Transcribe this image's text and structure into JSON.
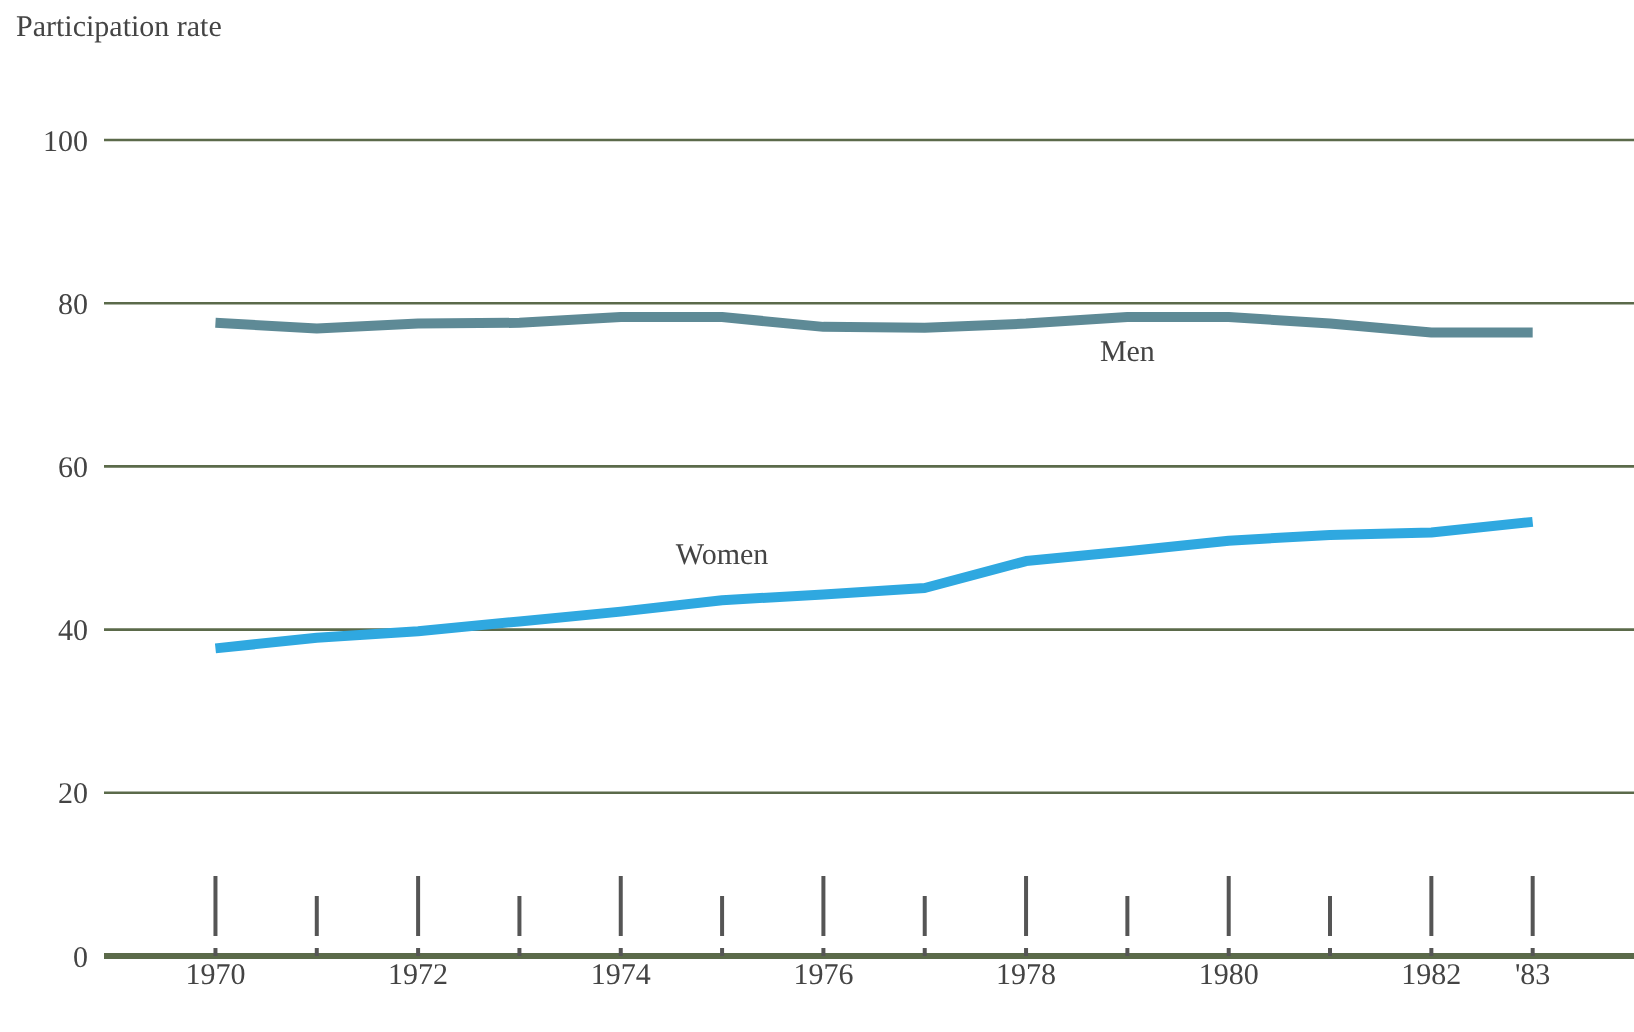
{
  "chart_data": {
    "type": "line",
    "ylabel": "Participation rate",
    "x": [
      1970,
      1971,
      1972,
      1973,
      1974,
      1975,
      1976,
      1977,
      1978,
      1979,
      1980,
      1981,
      1982,
      1983
    ],
    "series": [
      {
        "name": "Men",
        "color": "#5e8a96",
        "values": [
          77.6,
          76.9,
          77.5,
          77.6,
          78.3,
          78.3,
          77.1,
          77.0,
          77.5,
          78.3,
          78.3,
          77.5,
          76.4,
          76.4
        ]
      },
      {
        "name": "Women",
        "color": "#2fa8e0",
        "values": [
          37.7,
          39.0,
          39.8,
          41.0,
          42.2,
          43.6,
          44.3,
          45.1,
          48.4,
          49.6,
          50.9,
          51.6,
          51.9,
          53.2
        ]
      }
    ],
    "xlim": [
      1968.9,
      1984
    ],
    "xticks": [
      1970,
      {
        "value": 1971,
        "label": null
      },
      1972,
      {
        "value": 1973,
        "label": null
      },
      1974,
      {
        "value": 1975,
        "label": null
      },
      1976,
      {
        "value": 1977,
        "label": null
      },
      1978,
      {
        "value": 1979,
        "label": null
      },
      1980,
      {
        "value": 1981,
        "label": null
      },
      1982,
      {
        "value": 1983,
        "label": "'83"
      }
    ],
    "ylim": [
      0,
      100
    ],
    "yticks": [
      0,
      20,
      40,
      60,
      80,
      100
    ],
    "grid": "y",
    "legend": false,
    "marker": "none",
    "line_style": "solid"
  }
}
